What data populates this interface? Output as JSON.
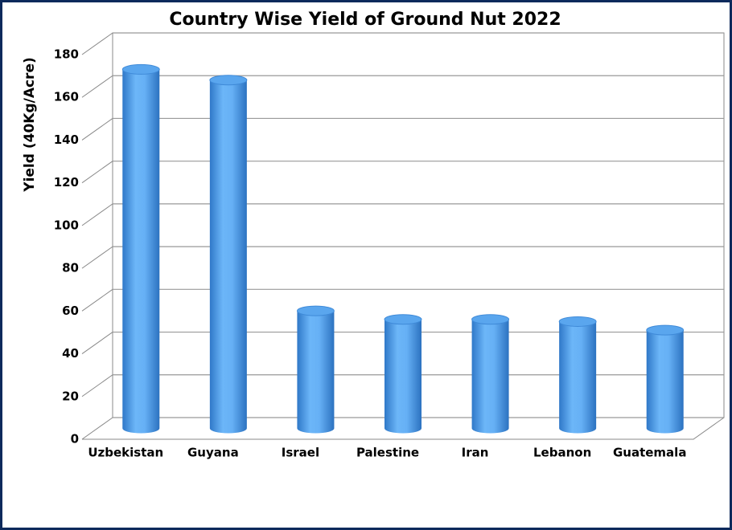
{
  "chart_data": {
    "type": "bar",
    "title": "Country Wise Yield of Ground Nut 2022",
    "y_label": "Yield (40Kg/Acre)",
    "categories": [
      "Uzbekistan",
      "Guyana",
      "Israel",
      "Palestine",
      "Iran",
      "Lebanon",
      "Guatemala"
    ],
    "values": [
      168,
      163,
      55,
      51,
      51,
      50,
      46
    ],
    "color": "#5aa6ee",
    "ylim": [
      0,
      180
    ],
    "yticks": [
      0,
      20,
      40,
      60,
      80,
      100,
      120,
      140,
      160,
      180
    ],
    "grid": true
  }
}
